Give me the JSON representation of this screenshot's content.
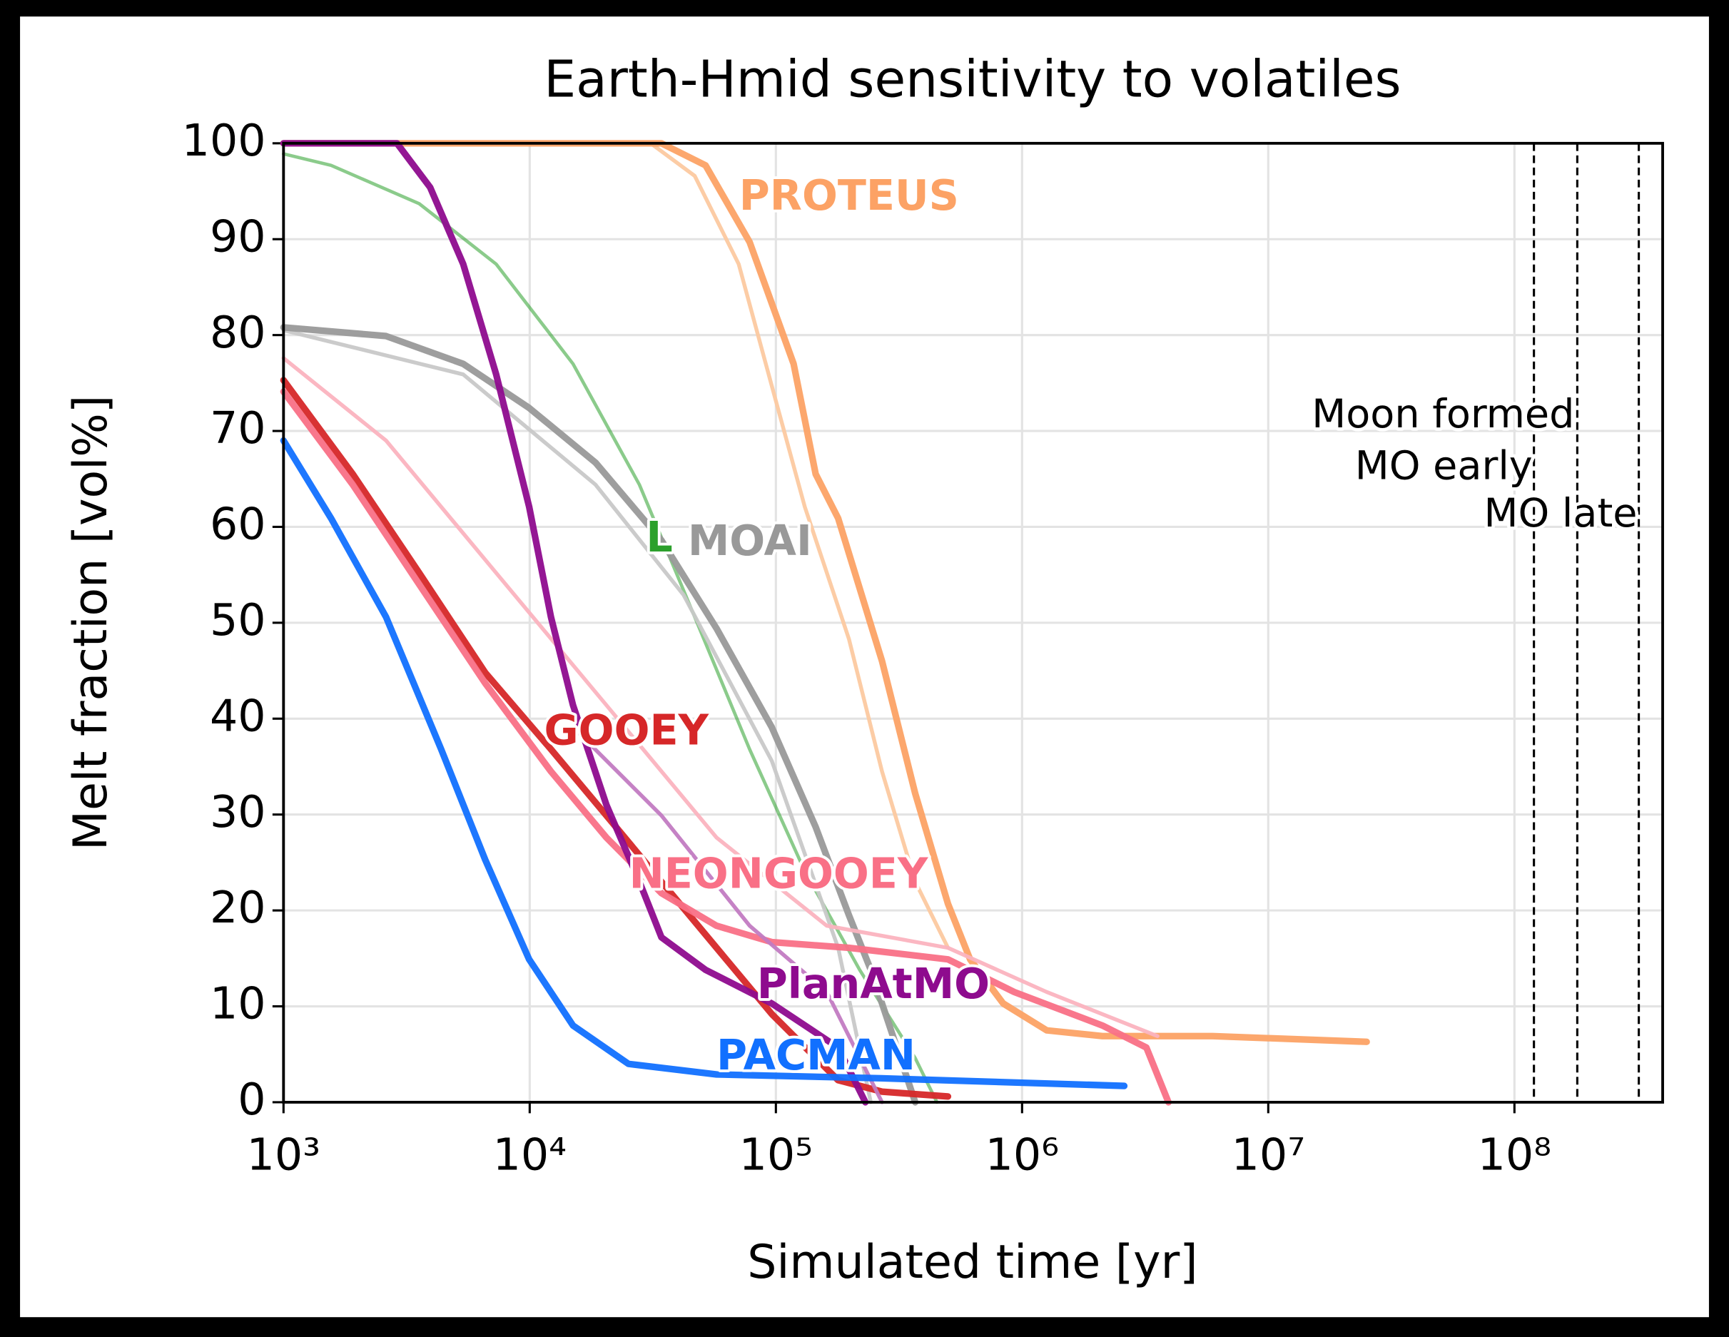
{
  "chart_data": {
    "type": "line",
    "title": "Earth-Hmid sensitivity to volatiles",
    "x_label": "Simulated time [yr]",
    "y_label": "Melt fraction [vol%]",
    "xscale": "log",
    "grid": true,
    "xlim": [
      1000,
      400000000
    ],
    "ylim": [
      0,
      100
    ],
    "xticks": [
      {
        "value": 1000,
        "label": "10³"
      },
      {
        "value": 10000,
        "label": "10⁴"
      },
      {
        "value": 100000,
        "label": "10⁵"
      },
      {
        "value": 1000000,
        "label": "10⁶"
      },
      {
        "value": 10000000,
        "label": "10⁷"
      },
      {
        "value": 100000000,
        "label": "10⁸"
      }
    ],
    "yticks": [
      0,
      10,
      20,
      30,
      40,
      50,
      60,
      70,
      80,
      90,
      100
    ],
    "vlines": [
      {
        "x": 120000000,
        "label": "Moon formed"
      },
      {
        "x": 180000000,
        "label": "MO early"
      },
      {
        "x": 320000000,
        "label": "MO late"
      }
    ],
    "series": [
      {
        "color": "#fcc9a0",
        "x": [
          1000,
          31000,
          46800,
          70600,
          96200,
          131000,
          198000,
          270000,
          368000,
          500000
        ],
        "values": [
          100,
          100,
          96.6,
          87.4,
          74.7,
          62.1,
          48.3,
          34.5,
          23.0,
          16.1
        ]
      },
      {
        "name": "PROTEUS",
        "color": "#fca265",
        "x": [
          1000,
          34300,
          51800,
          78200,
          118000,
          145000,
          179000,
          270000,
          368000,
          500000,
          615000,
          838000,
          1260000,
          2120000,
          5940000,
          25100000
        ],
        "values": [
          100,
          100,
          97.7,
          89.7,
          77.0,
          65.5,
          60.9,
          46.0,
          32.2,
          20.7,
          14.9,
          10.3,
          7.5,
          6.9,
          6.9,
          6.3
        ]
      },
      {
        "name": "L",
        "color": "#2ca02c",
        "x": [
          1000,
          1560,
          3560,
          7310,
          15000,
          27900,
          46800,
          78200,
          131000,
          219000,
          368000,
          451000
        ],
        "values": [
          98.9,
          97.7,
          93.7,
          87.4,
          77.0,
          64.4,
          50.6,
          36.8,
          24.1,
          13.8,
          4.6,
          0
        ]
      },
      {
        "color": "#c8c8c8",
        "x": [
          1000,
          5370,
          18500,
          42200,
          96200,
          179000,
          243000
        ],
        "values": [
          80.5,
          75.9,
          64.4,
          52.9,
          35.6,
          16.1,
          0
        ]
      },
      {
        "name": "MOAI",
        "color": "#999999",
        "x": [
          1000,
          2610,
          5370,
          9950,
          18500,
          34300,
          57400,
          96200,
          145000,
          198000,
          243000,
          299000,
          368000
        ],
        "values": [
          80.8,
          79.9,
          77.0,
          72.4,
          66.7,
          58.6,
          49.4,
          39.1,
          28.7,
          19.5,
          13.8,
          6.9,
          0
        ]
      },
      {
        "color": "#fbb3bf",
        "x": [
          1000,
          2610,
          7310,
          20500,
          57400,
          161000,
          500000,
          1260000,
          3550000
        ],
        "values": [
          77.6,
          69.0,
          55.2,
          41.4,
          27.6,
          18.4,
          16.1,
          11.5,
          6.9
        ]
      },
      {
        "name": "GOOEY",
        "color": "#d62728",
        "x": [
          1000,
          1910,
          3560,
          6590,
          12200,
          20500,
          34300,
          57400,
          96200,
          179000,
          270000,
          500000
        ],
        "values": [
          75.3,
          65.5,
          55.2,
          44.8,
          36.8,
          29.9,
          23.0,
          16.1,
          9.2,
          2.3,
          1.1,
          0.6
        ]
      },
      {
        "name": "NEONGOOEY",
        "color": "#f97086",
        "x": [
          1000,
          1910,
          3560,
          6590,
          12200,
          20500,
          34300,
          57400,
          96200,
          198000,
          500000,
          929000,
          2120000,
          3200000,
          3930000
        ],
        "values": [
          74.1,
          64.4,
          54.0,
          43.7,
          34.5,
          27.6,
          21.8,
          18.4,
          16.7,
          16.1,
          14.9,
          11.5,
          8.0,
          5.7,
          0
        ]
      },
      {
        "color": "#c27bc2",
        "x": [
          15000,
          34300,
          78200,
          161000,
          270000
        ],
        "values": [
          39.1,
          29.9,
          18.4,
          11.5,
          0
        ]
      },
      {
        "name": "PlanAtMO",
        "color": "#8e0b8e",
        "x": [
          1000,
          2890,
          3940,
          5370,
          7310,
          9950,
          12200,
          15000,
          20500,
          27900,
          34300,
          51800,
          96200,
          179000,
          231000
        ],
        "values": [
          100,
          100,
          95.4,
          87.4,
          75.9,
          62.1,
          50.6,
          41.4,
          31.0,
          23.0,
          17.2,
          13.8,
          10.3,
          5.7,
          0
        ]
      },
      {
        "name": "PACMAN",
        "color": "#1170ff",
        "x": [
          1000,
          1560,
          2610,
          4370,
          6590,
          9950,
          15000,
          25200,
          57400,
          270000,
          2600000
        ],
        "values": [
          69.0,
          60.9,
          50.6,
          36.8,
          25.3,
          14.9,
          8.0,
          4.0,
          2.9,
          2.5,
          1.7
        ]
      }
    ]
  }
}
